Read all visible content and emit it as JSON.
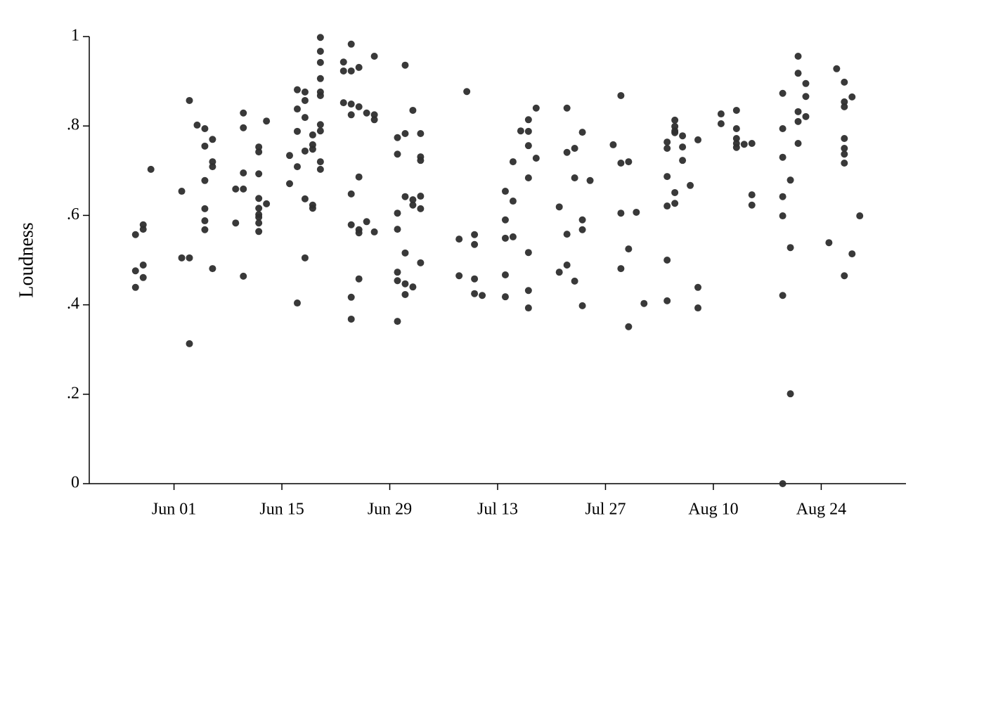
{
  "chart_data": {
    "type": "scatter",
    "ylabel": "Loudness",
    "color": "#2e2e2e",
    "x": [
      "May 27",
      "May 27",
      "May 27",
      "May 28",
      "May 28",
      "May 28",
      "May 28",
      "May 29",
      "Jun 02",
      "Jun 02",
      "Jun 03",
      "Jun 03",
      "Jun 03",
      "Jun 04",
      "Jun 05",
      "Jun 05",
      "Jun 05",
      "Jun 05",
      "Jun 05",
      "Jun 05",
      "Jun 06",
      "Jun 06",
      "Jun 06",
      "Jun 06",
      "Jun 09",
      "Jun 09",
      "Jun 10",
      "Jun 10",
      "Jun 10",
      "Jun 10",
      "Jun 10",
      "Jun 12",
      "Jun 12",
      "Jun 12",
      "Jun 12",
      "Jun 12",
      "Jun 12",
      "Jun 12",
      "Jun 12",
      "Jun 12",
      "Jun 13",
      "Jun 13",
      "Jun 16",
      "Jun 16",
      "Jun 17",
      "Jun 17",
      "Jun 17",
      "Jun 17",
      "Jun 17",
      "Jun 18",
      "Jun 18",
      "Jun 18",
      "Jun 18",
      "Jun 18",
      "Jun 18",
      "Jun 19",
      "Jun 19",
      "Jun 19",
      "Jun 19",
      "Jun 19",
      "Jun 20",
      "Jun 20",
      "Jun 20",
      "Jun 20",
      "Jun 20",
      "Jun 20",
      "Jun 20",
      "Jun 20",
      "Jun 20",
      "Jun 20",
      "Jun 23",
      "Jun 23",
      "Jun 23",
      "Jun 24",
      "Jun 24",
      "Jun 24",
      "Jun 24",
      "Jun 24",
      "Jun 24",
      "Jun 24",
      "Jun 24",
      "Jun 25",
      "Jun 25",
      "Jun 25",
      "Jun 25",
      "Jun 25",
      "Jun 25",
      "Jun 26",
      "Jun 26",
      "Jun 27",
      "Jun 27",
      "Jun 27",
      "Jun 27",
      "Jun 30",
      "Jun 30",
      "Jun 30",
      "Jun 30",
      "Jun 30",
      "Jun 30",
      "Jun 30",
      "Jul 01",
      "Jul 01",
      "Jul 01",
      "Jul 01",
      "Jul 01",
      "Jul 01",
      "Jul 02",
      "Jul 02",
      "Jul 02",
      "Jul 02",
      "Jul 03",
      "Jul 03",
      "Jul 03",
      "Jul 03",
      "Jul 03",
      "Jul 03",
      "Jul 08",
      "Jul 08",
      "Jul 09",
      "Jul 10",
      "Jul 10",
      "Jul 10",
      "Jul 10",
      "Jul 11",
      "Jul 14",
      "Jul 14",
      "Jul 14",
      "Jul 14",
      "Jul 14",
      "Jul 15",
      "Jul 15",
      "Jul 15",
      "Jul 16",
      "Jul 17",
      "Jul 17",
      "Jul 17",
      "Jul 17",
      "Jul 17",
      "Jul 17",
      "Jul 17",
      "Jul 18",
      "Jul 18",
      "Jul 21",
      "Jul 21",
      "Jul 22",
      "Jul 22",
      "Jul 22",
      "Jul 22",
      "Jul 23",
      "Jul 23",
      "Jul 23",
      "Jul 24",
      "Jul 24",
      "Jul 24",
      "Jul 24",
      "Jul 25",
      "Jul 28",
      "Jul 29",
      "Jul 29",
      "Jul 29",
      "Jul 29",
      "Jul 30",
      "Jul 30",
      "Jul 30",
      "Jul 31",
      "Aug 01",
      "Aug 04",
      "Aug 04",
      "Aug 04",
      "Aug 04",
      "Aug 04",
      "Aug 04",
      "Aug 05",
      "Aug 05",
      "Aug 05",
      "Aug 05",
      "Aug 05",
      "Aug 05",
      "Aug 06",
      "Aug 06",
      "Aug 06",
      "Aug 07",
      "Aug 08",
      "Aug 08",
      "Aug 08",
      "Aug 11",
      "Aug 11",
      "Aug 13",
      "Aug 13",
      "Aug 13",
      "Aug 13",
      "Aug 13",
      "Aug 14",
      "Aug 15",
      "Aug 15",
      "Aug 15",
      "Aug 19",
      "Aug 19",
      "Aug 19",
      "Aug 19",
      "Aug 19",
      "Aug 19",
      "Aug 19",
      "Aug 20",
      "Aug 20",
      "Aug 20",
      "Aug 21",
      "Aug 21",
      "Aug 21",
      "Aug 21",
      "Aug 21",
      "Aug 22",
      "Aug 22",
      "Aug 22",
      "Aug 25",
      "Aug 26",
      "Aug 27",
      "Aug 27",
      "Aug 27",
      "Aug 27",
      "Aug 27",
      "Aug 27",
      "Aug 27",
      "Aug 27",
      "Aug 28",
      "Aug 28",
      "Aug 29"
    ],
    "values": [
      0.557,
      0.476,
      0.439,
      0.579,
      0.569,
      0.489,
      0.461,
      0.703,
      0.654,
      0.505,
      0.857,
      0.505,
      0.313,
      0.802,
      0.794,
      0.755,
      0.678,
      0.615,
      0.588,
      0.568,
      0.77,
      0.72,
      0.709,
      0.481,
      0.659,
      0.583,
      0.829,
      0.796,
      0.695,
      0.659,
      0.464,
      0.753,
      0.742,
      0.693,
      0.638,
      0.616,
      0.602,
      0.596,
      0.583,
      0.564,
      0.811,
      0.626,
      0.734,
      0.671,
      0.881,
      0.838,
      0.788,
      0.709,
      0.404,
      0.876,
      0.857,
      0.819,
      0.744,
      0.637,
      0.505,
      0.78,
      0.758,
      0.748,
      0.623,
      0.616,
      0.998,
      0.967,
      0.942,
      0.906,
      0.876,
      0.868,
      0.803,
      0.789,
      0.72,
      0.703,
      0.943,
      0.923,
      0.852,
      0.983,
      0.923,
      0.849,
      0.825,
      0.648,
      0.579,
      0.417,
      0.368,
      0.931,
      0.843,
      0.686,
      0.568,
      0.561,
      0.458,
      0.829,
      0.586,
      0.956,
      0.825,
      0.814,
      0.563,
      0.774,
      0.737,
      0.605,
      0.569,
      0.473,
      0.454,
      0.363,
      0.936,
      0.783,
      0.642,
      0.516,
      0.447,
      0.423,
      0.835,
      0.635,
      0.623,
      0.44,
      0.783,
      0.731,
      0.723,
      0.643,
      0.615,
      0.494,
      0.547,
      0.465,
      0.877,
      0.557,
      0.535,
      0.458,
      0.425,
      0.421,
      0.654,
      0.59,
      0.549,
      0.467,
      0.418,
      0.72,
      0.632,
      0.552,
      0.789,
      0.814,
      0.788,
      0.756,
      0.684,
      0.517,
      0.432,
      0.393,
      0.84,
      0.728,
      0.619,
      0.473,
      0.84,
      0.741,
      0.558,
      0.489,
      0.75,
      0.684,
      0.453,
      0.786,
      0.59,
      0.568,
      0.398,
      0.678,
      0.758,
      0.868,
      0.717,
      0.605,
      0.481,
      0.72,
      0.525,
      0.351,
      0.607,
      0.403,
      0.764,
      0.75,
      0.687,
      0.621,
      0.5,
      0.409,
      0.813,
      0.799,
      0.789,
      0.785,
      0.651,
      0.627,
      0.778,
      0.753,
      0.723,
      0.667,
      0.769,
      0.439,
      0.393,
      0.827,
      0.805,
      0.835,
      0.794,
      0.772,
      0.761,
      0.752,
      0.759,
      0.761,
      0.646,
      0.623,
      0.873,
      0.794,
      0.73,
      0.642,
      0.599,
      0.421,
      0,
      0.679,
      0.528,
      0.201,
      0.956,
      0.918,
      0.832,
      0.81,
      0.761,
      0.895,
      0.866,
      0.821,
      0.539,
      0.928,
      0.898,
      0.854,
      0.843,
      0.772,
      0.75,
      0.737,
      0.717,
      0.465,
      0.865,
      0.514,
      0.599
    ],
    "xlim": [
      "May 21",
      "Sep 04"
    ],
    "xticks": [
      "Jun 01",
      "Jun 15",
      "Jun 29",
      "Jul 13",
      "Jul 27",
      "Aug 10",
      "Aug 24"
    ],
    "ylim": [
      0,
      1
    ],
    "yticks": [
      0,
      {
        "value": 0.2,
        "label": ".2"
      },
      {
        "value": 0.4,
        "label": ".4"
      },
      {
        "value": 0.6,
        "label": ".6"
      },
      {
        "value": 0.8,
        "label": ".8"
      },
      1
    ]
  }
}
